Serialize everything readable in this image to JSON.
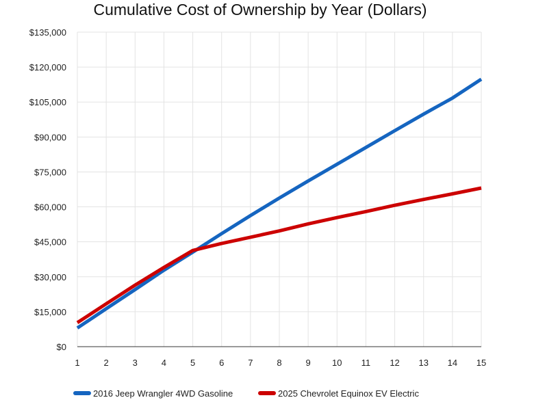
{
  "chart_data": {
    "type": "line",
    "title": "Cumulative Cost of Ownership by Year (Dollars)",
    "xlabel": "",
    "ylabel": "",
    "x": [
      1,
      2,
      3,
      4,
      5,
      6,
      7,
      8,
      9,
      10,
      11,
      12,
      13,
      14,
      15
    ],
    "xlim": [
      1,
      15
    ],
    "ylim": [
      0,
      135000
    ],
    "y_ticks": [
      0,
      15000,
      30000,
      45000,
      60000,
      75000,
      90000,
      105000,
      120000,
      135000
    ],
    "y_tick_labels": [
      "$0",
      "$15,000",
      "$30,000",
      "$45,000",
      "$60,000",
      "$75,000",
      "$90,000",
      "$105,000",
      "$120,000",
      "$135,000"
    ],
    "x_tick_labels": [
      "1",
      "2",
      "3",
      "4",
      "5",
      "6",
      "7",
      "8",
      "9",
      "10",
      "11",
      "12",
      "13",
      "14",
      "15"
    ],
    "grid": true,
    "legend_position": "bottom",
    "series": [
      {
        "name": "2016 Jeep Wrangler 4WD Gasoline",
        "color": "#1565c0",
        "values": [
          8000,
          16300,
          24500,
          32800,
          40600,
          48500,
          56300,
          63800,
          71100,
          78300,
          85500,
          92700,
          99800,
          106700,
          114800
        ]
      },
      {
        "name": "2025 Chevrolet Equinox EV Electric",
        "color": "#cc0000",
        "values": [
          10300,
          18400,
          26400,
          34000,
          41300,
          44300,
          47000,
          49700,
          52700,
          55400,
          58000,
          60700,
          63200,
          65600,
          68100
        ]
      }
    ]
  }
}
